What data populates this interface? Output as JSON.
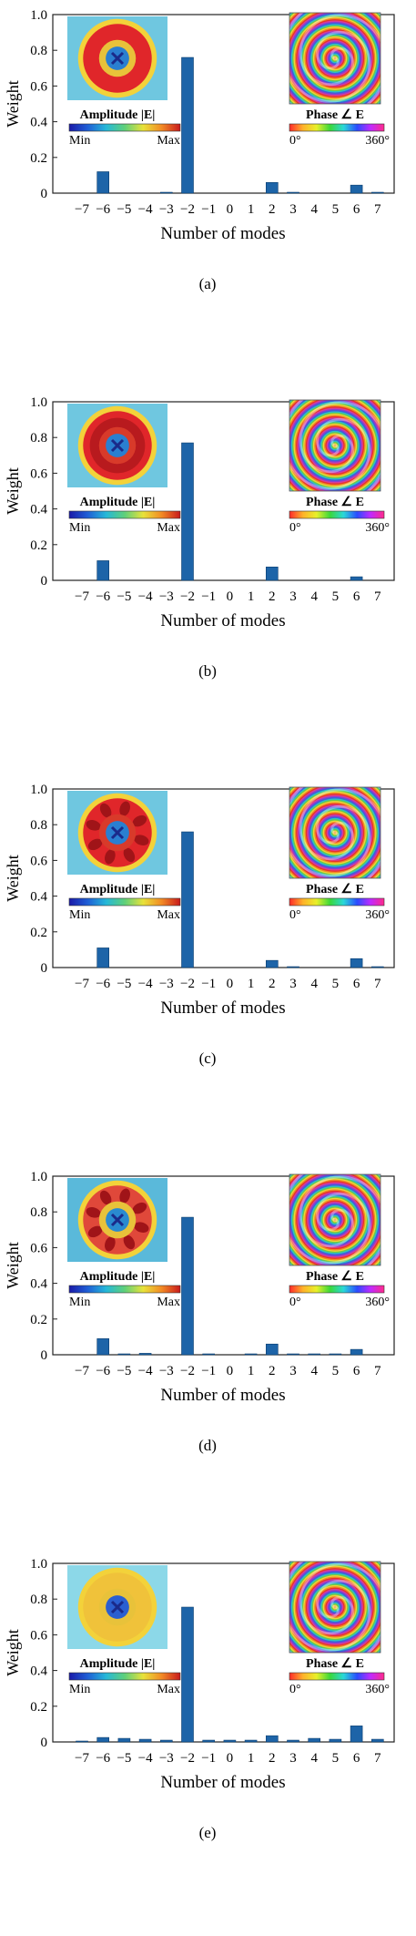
{
  "colors": {
    "bar": "#1d64a8",
    "bar_edge": "#0b3d6e",
    "axis": "#222222"
  },
  "chart_data": [
    {
      "type": "bar",
      "panel_label": "(a)",
      "xlabel": "Number of modes",
      "ylabel": "Weight",
      "ylim": [
        0,
        1
      ],
      "yticks": [
        "0",
        "0.2",
        "0.4",
        "0.6",
        "0.8",
        "1.0"
      ],
      "categories": [
        "−7",
        "−6",
        "−5",
        "−4",
        "−3",
        "−2",
        "−1",
        "0",
        "1",
        "2",
        "3",
        "4",
        "5",
        "6",
        "7"
      ],
      "values": [
        0.0,
        0.12,
        0.0,
        0.0,
        0.005,
        0.76,
        0.0,
        0.0,
        0.0,
        0.06,
        0.005,
        0.0,
        0.0,
        0.045,
        0.005
      ],
      "insets": {
        "amplitude": {
          "label": "Amplitude |E|",
          "min_label": "Min",
          "max_label": "Max",
          "pattern": "ring-blue-center"
        },
        "phase": {
          "label": "Phase ∠ E",
          "min_label": "0°",
          "max_label": "360°"
        }
      }
    },
    {
      "type": "bar",
      "panel_label": "(b)",
      "xlabel": "Number of modes",
      "ylabel": "Weight",
      "ylim": [
        0,
        1
      ],
      "yticks": [
        "0",
        "0.2",
        "0.4",
        "0.6",
        "0.8",
        "1.0"
      ],
      "categories": [
        "−7",
        "−6",
        "−5",
        "−4",
        "−3",
        "−2",
        "−1",
        "0",
        "1",
        "2",
        "3",
        "4",
        "5",
        "6",
        "7"
      ],
      "values": [
        0.0,
        0.11,
        0.0,
        0.0,
        0.0,
        0.77,
        0.0,
        0.0,
        0.0,
        0.075,
        0.0,
        0.0,
        0.0,
        0.02,
        0.0
      ],
      "insets": {
        "amplitude": {
          "label": "Amplitude |E|",
          "min_label": "Min",
          "max_label": "Max",
          "pattern": "ring-red"
        },
        "phase": {
          "label": "Phase ∠ E",
          "min_label": "0°",
          "max_label": "360°"
        }
      }
    },
    {
      "type": "bar",
      "panel_label": "(c)",
      "xlabel": "Number of modes",
      "ylabel": "Weight",
      "ylim": [
        0,
        1
      ],
      "yticks": [
        "0",
        "0.2",
        "0.4",
        "0.6",
        "0.8",
        "1.0"
      ],
      "categories": [
        "−7",
        "−6",
        "−5",
        "−4",
        "−3",
        "−2",
        "−1",
        "0",
        "1",
        "2",
        "3",
        "4",
        "5",
        "6",
        "7"
      ],
      "values": [
        0.0,
        0.11,
        0.0,
        0.0,
        0.0,
        0.76,
        0.0,
        0.0,
        0.0,
        0.04,
        0.005,
        0.0,
        0.0,
        0.05,
        0.005
      ],
      "insets": {
        "amplitude": {
          "label": "Amplitude |E|",
          "min_label": "Min",
          "max_label": "Max",
          "pattern": "blobs-red"
        },
        "phase": {
          "label": "Phase ∠ E",
          "min_label": "0°",
          "max_label": "360°"
        }
      }
    },
    {
      "type": "bar",
      "panel_label": "(d)",
      "xlabel": "Number of modes",
      "ylabel": "Weight",
      "ylim": [
        0,
        1
      ],
      "yticks": [
        "0",
        "0.2",
        "0.4",
        "0.6",
        "0.8",
        "1.0"
      ],
      "categories": [
        "−7",
        "−6",
        "−5",
        "−4",
        "−3",
        "−2",
        "−1",
        "0",
        "1",
        "2",
        "3",
        "4",
        "5",
        "6",
        "7"
      ],
      "values": [
        0.0,
        0.09,
        0.005,
        0.008,
        0.0,
        0.77,
        0.005,
        0.0,
        0.005,
        0.06,
        0.005,
        0.005,
        0.005,
        0.03,
        0.0
      ],
      "insets": {
        "amplitude": {
          "label": "Amplitude |E|",
          "min_label": "Min",
          "max_label": "Max",
          "pattern": "mixed"
        },
        "phase": {
          "label": "Phase ∠ E",
          "min_label": "0°",
          "max_label": "360°"
        }
      }
    },
    {
      "type": "bar",
      "panel_label": "(e)",
      "xlabel": "Number of modes",
      "ylabel": "Weight",
      "ylim": [
        0,
        1
      ],
      "yticks": [
        "0",
        "0.2",
        "0.4",
        "0.6",
        "0.8",
        "1.0"
      ],
      "categories": [
        "−7",
        "−6",
        "−5",
        "−4",
        "−3",
        "−2",
        "−1",
        "0",
        "1",
        "2",
        "3",
        "4",
        "5",
        "6",
        "7"
      ],
      "values": [
        0.005,
        0.025,
        0.02,
        0.015,
        0.01,
        0.755,
        0.01,
        0.01,
        0.01,
        0.035,
        0.01,
        0.02,
        0.015,
        0.09,
        0.015
      ],
      "insets": {
        "amplitude": {
          "label": "Amplitude |E|",
          "min_label": "Min",
          "max_label": "Max",
          "pattern": "cyan-mixed"
        },
        "phase": {
          "label": "Phase ∠ E",
          "min_label": "0°",
          "max_label": "360°"
        }
      }
    }
  ]
}
